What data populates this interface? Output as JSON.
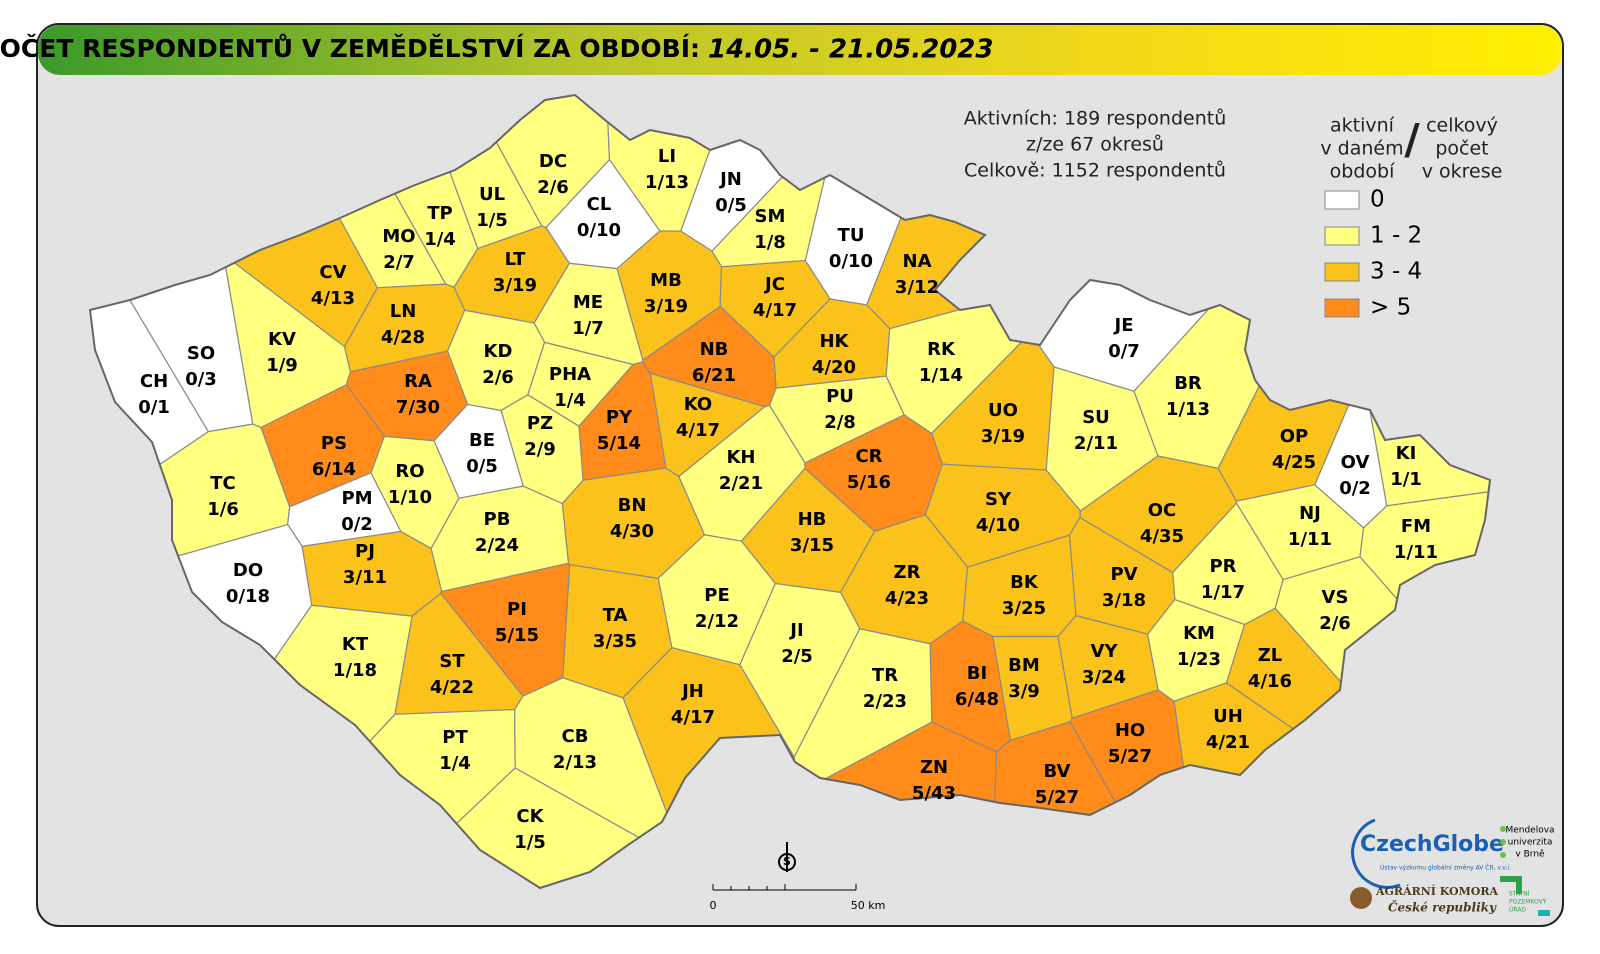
{
  "header": {
    "title": "POČET RESPONDENTŮ V ZEMĚDĚLSTVÍ ZA OBDOBÍ:",
    "period": "14.05. - 21.05.2023"
  },
  "summary": [
    "Aktivních: 189 respondentů",
    "z/ze 67 okresů",
    "Celkově: 1152 respondentů"
  ],
  "legend": {
    "left": [
      "aktivní",
      "v daném",
      "období"
    ],
    "separator": "/",
    "right": [
      "celkový",
      "počet",
      "v okrese"
    ],
    "items": [
      {
        "label": "0",
        "color": "#ffffff"
      },
      {
        "label": "1 - 2",
        "color": "#ffff80"
      },
      {
        "label": "3 - 4",
        "color": "#fbc21c"
      },
      {
        "label": "> 5",
        "color": "#ff8c1a"
      }
    ]
  },
  "districts": [
    {
      "code": "DC",
      "label": "2/6",
      "color": "#ffff80"
    },
    {
      "code": "LI",
      "label": "1/13",
      "color": "#ffff80"
    },
    {
      "code": "JN",
      "label": "0/5",
      "color": "#ffffff"
    },
    {
      "code": "CL",
      "label": "0/10",
      "color": "#ffffff"
    },
    {
      "code": "UL",
      "label": "1/5",
      "color": "#ffff80"
    },
    {
      "code": "TP",
      "label": "1/4",
      "color": "#ffff80"
    },
    {
      "code": "MO",
      "label": "2/7",
      "color": "#ffff80"
    },
    {
      "code": "SM",
      "label": "1/8",
      "color": "#ffff80"
    },
    {
      "code": "TU",
      "label": "0/10",
      "color": "#ffffff"
    },
    {
      "code": "NA",
      "label": "3/12",
      "color": "#fbc21c"
    },
    {
      "code": "LT",
      "label": "3/19",
      "color": "#fbc21c"
    },
    {
      "code": "CV",
      "label": "4/13",
      "color": "#fbc21c"
    },
    {
      "code": "MB",
      "label": "3/19",
      "color": "#fbc21c"
    },
    {
      "code": "JC",
      "label": "4/17",
      "color": "#fbc21c"
    },
    {
      "code": "ME",
      "label": "1/7",
      "color": "#ffff80"
    },
    {
      "code": "LN",
      "label": "4/28",
      "color": "#fbc21c"
    },
    {
      "code": "KV",
      "label": "1/9",
      "color": "#ffff80"
    },
    {
      "code": "SO",
      "label": "0/3",
      "color": "#ffffff"
    },
    {
      "code": "HK",
      "label": "4/20",
      "color": "#fbc21c"
    },
    {
      "code": "NB",
      "label": "6/21",
      "color": "#ff8c1a"
    },
    {
      "code": "KD",
      "label": "2/6",
      "color": "#ffff80"
    },
    {
      "code": "RK",
      "label": "1/14",
      "color": "#ffff80"
    },
    {
      "code": "JE",
      "label": "0/7",
      "color": "#ffffff"
    },
    {
      "code": "CH",
      "label": "0/1",
      "color": "#ffffff"
    },
    {
      "code": "RA",
      "label": "7/30",
      "color": "#ff8c1a"
    },
    {
      "code": "PHA",
      "label": "1/4",
      "color": "#ffff80"
    },
    {
      "code": "BR",
      "label": "1/13",
      "color": "#ffff80"
    },
    {
      "code": "KO",
      "label": "4/17",
      "color": "#fbc21c"
    },
    {
      "code": "PU",
      "label": "2/8",
      "color": "#ffff80"
    },
    {
      "code": "UO",
      "label": "3/19",
      "color": "#fbc21c"
    },
    {
      "code": "SU",
      "label": "2/11",
      "color": "#ffff80"
    },
    {
      "code": "PY",
      "label": "5/14",
      "color": "#ff8c1a"
    },
    {
      "code": "PZ",
      "label": "2/9",
      "color": "#ffff80"
    },
    {
      "code": "BE",
      "label": "0/5",
      "color": "#ffffff"
    },
    {
      "code": "PS",
      "label": "6/14",
      "color": "#ff8c1a"
    },
    {
      "code": "OP",
      "label": "4/25",
      "color": "#fbc21c"
    },
    {
      "code": "KI",
      "label": "1/1",
      "color": "#ffff80"
    },
    {
      "code": "CR",
      "label": "5/16",
      "color": "#ff8c1a"
    },
    {
      "code": "KH",
      "label": "2/21",
      "color": "#ffff80"
    },
    {
      "code": "OV",
      "label": "0/2",
      "color": "#ffffff"
    },
    {
      "code": "RO",
      "label": "1/10",
      "color": "#ffff80"
    },
    {
      "code": "TC",
      "label": "1/6",
      "color": "#ffff80"
    },
    {
      "code": "SY",
      "label": "4/10",
      "color": "#fbc21c"
    },
    {
      "code": "BN",
      "label": "4/30",
      "color": "#fbc21c"
    },
    {
      "code": "OC",
      "label": "4/35",
      "color": "#fbc21c"
    },
    {
      "code": "PM",
      "label": "0/2",
      "color": "#ffffff"
    },
    {
      "code": "NJ",
      "label": "1/11",
      "color": "#ffff80"
    },
    {
      "code": "FM",
      "label": "1/11",
      "color": "#ffff80"
    },
    {
      "code": "PB",
      "label": "2/24",
      "color": "#ffff80"
    },
    {
      "code": "HB",
      "label": "3/15",
      "color": "#fbc21c"
    },
    {
      "code": "PJ",
      "label": "3/11",
      "color": "#fbc21c"
    },
    {
      "code": "DO",
      "label": "0/18",
      "color": "#ffffff"
    },
    {
      "code": "PR",
      "label": "1/17",
      "color": "#ffff80"
    },
    {
      "code": "ZR",
      "label": "4/23",
      "color": "#fbc21c"
    },
    {
      "code": "BK",
      "label": "3/25",
      "color": "#fbc21c"
    },
    {
      "code": "PV",
      "label": "3/18",
      "color": "#fbc21c"
    },
    {
      "code": "VS",
      "label": "2/6",
      "color": "#ffff80"
    },
    {
      "code": "PE",
      "label": "2/12",
      "color": "#ffff80"
    },
    {
      "code": "PI",
      "label": "5/15",
      "color": "#ff8c1a"
    },
    {
      "code": "TA",
      "label": "3/35",
      "color": "#fbc21c"
    },
    {
      "code": "JI",
      "label": "2/5",
      "color": "#ffff80"
    },
    {
      "code": "KT",
      "label": "1/18",
      "color": "#ffff80"
    },
    {
      "code": "KM",
      "label": "1/23",
      "color": "#ffff80"
    },
    {
      "code": "ZL",
      "label": "4/16",
      "color": "#fbc21c"
    },
    {
      "code": "ST",
      "label": "4/22",
      "color": "#fbc21c"
    },
    {
      "code": "BI",
      "label": "6/48",
      "color": "#ff8c1a"
    },
    {
      "code": "BM",
      "label": "3/9",
      "color": "#fbc21c"
    },
    {
      "code": "VY",
      "label": "3/24",
      "color": "#fbc21c"
    },
    {
      "code": "TR",
      "label": "2/23",
      "color": "#ffff80"
    },
    {
      "code": "JH",
      "label": "4/17",
      "color": "#fbc21c"
    },
    {
      "code": "UH",
      "label": "4/21",
      "color": "#fbc21c"
    },
    {
      "code": "HO",
      "label": "5/27",
      "color": "#ff8c1a"
    },
    {
      "code": "PT",
      "label": "1/4",
      "color": "#ffff80"
    },
    {
      "code": "CB",
      "label": "2/13",
      "color": "#ffff80"
    },
    {
      "code": "ZN",
      "label": "5/43",
      "color": "#ff8c1a"
    },
    {
      "code": "BV",
      "label": "5/27",
      "color": "#ff8c1a"
    },
    {
      "code": "CK",
      "label": "1/5",
      "color": "#ffff80"
    }
  ],
  "scale": {
    "start": "0",
    "end": "50 km"
  },
  "north": "S",
  "logos": {
    "czechglobe": "CzechGlobe",
    "czechglobe_sub": "Ústav výzkumu globální změny AV ČR, v.v.i.",
    "mendel": [
      "Mendelova",
      "univerzita",
      "v Brně"
    ],
    "agrarni": [
      "AGRÁRNÍ KOMORA",
      "České republiky"
    ],
    "spu": [
      "STÁTNÍ",
      "POZEMKOVÝ",
      "ÚŘAD"
    ]
  }
}
